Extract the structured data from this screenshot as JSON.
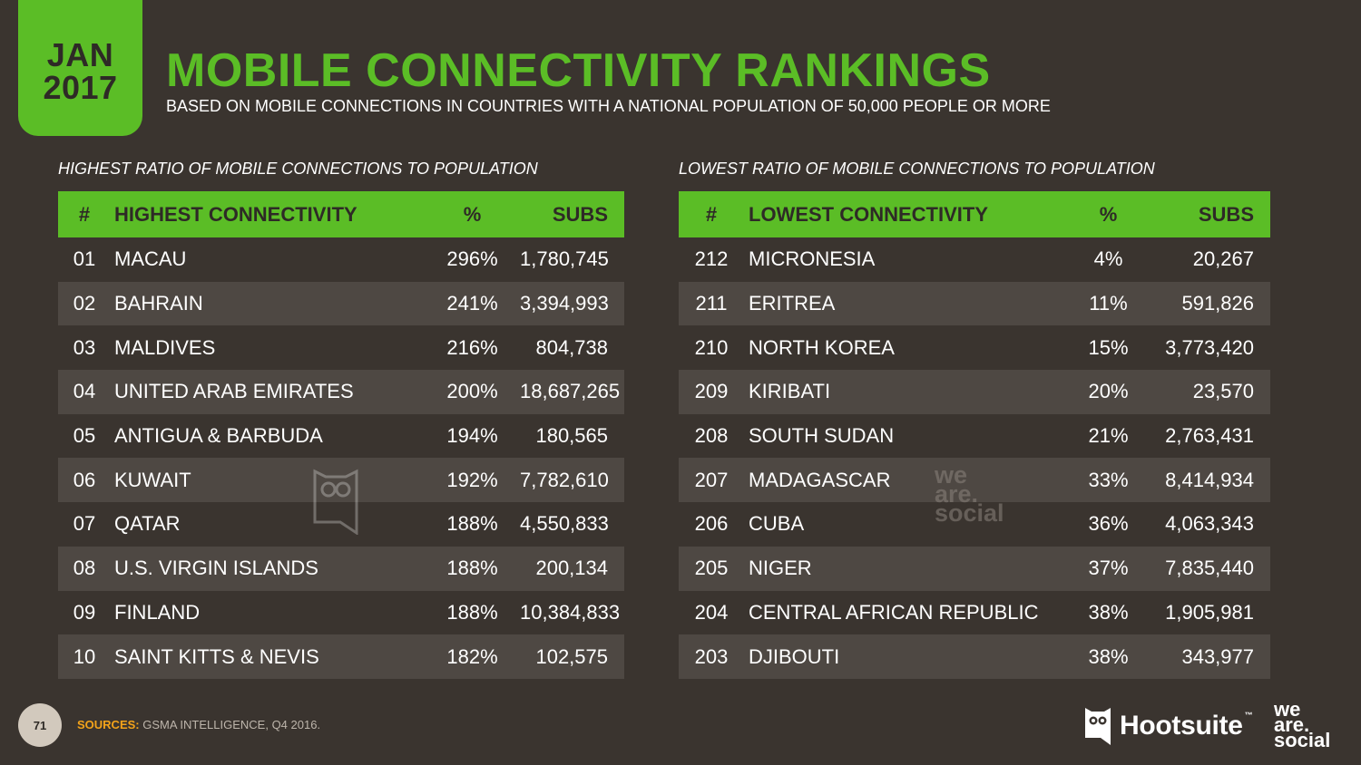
{
  "header": {
    "month": "JAN",
    "year": "2017",
    "title": "MOBILE CONNECTIVITY RANKINGS",
    "subtitle": "BASED ON MOBILE CONNECTIONS IN COUNTRIES WITH A NATIONAL POPULATION OF 50,000 PEOPLE OR MORE"
  },
  "highest": {
    "caption": "HIGHEST RATIO OF MOBILE CONNECTIONS TO POPULATION",
    "headers": {
      "num": "#",
      "name": "HIGHEST CONNECTIVITY",
      "pct": "%",
      "subs": "SUBS"
    },
    "rows": [
      {
        "num": "01",
        "name": "MACAU",
        "pct": "296%",
        "subs": "1,780,745"
      },
      {
        "num": "02",
        "name": "BAHRAIN",
        "pct": "241%",
        "subs": "3,394,993"
      },
      {
        "num": "03",
        "name": "MALDIVES",
        "pct": "216%",
        "subs": "804,738"
      },
      {
        "num": "04",
        "name": "UNITED ARAB EMIRATES",
        "pct": "200%",
        "subs": "18,687,265"
      },
      {
        "num": "05",
        "name": "ANTIGUA & BARBUDA",
        "pct": "194%",
        "subs": "180,565"
      },
      {
        "num": "06",
        "name": "KUWAIT",
        "pct": "192%",
        "subs": "7,782,610"
      },
      {
        "num": "07",
        "name": "QATAR",
        "pct": "188%",
        "subs": "4,550,833"
      },
      {
        "num": "08",
        "name": "U.S. VIRGIN ISLANDS",
        "pct": "188%",
        "subs": "200,134"
      },
      {
        "num": "09",
        "name": "FINLAND",
        "pct": "188%",
        "subs": "10,384,833"
      },
      {
        "num": "10",
        "name": "SAINT KITTS & NEVIS",
        "pct": "182%",
        "subs": "102,575"
      }
    ]
  },
  "lowest": {
    "caption": "LOWEST RATIO OF MOBILE CONNECTIONS TO POPULATION",
    "headers": {
      "num": "#",
      "name": "LOWEST CONNECTIVITY",
      "pct": "%",
      "subs": "SUBS"
    },
    "rows": [
      {
        "num": "212",
        "name": "MICRONESIA",
        "pct": "4%",
        "subs": "20,267"
      },
      {
        "num": "211",
        "name": "ERITREA",
        "pct": "11%",
        "subs": "591,826"
      },
      {
        "num": "210",
        "name": "NORTH KOREA",
        "pct": "15%",
        "subs": "3,773,420"
      },
      {
        "num": "209",
        "name": "KIRIBATI",
        "pct": "20%",
        "subs": "23,570"
      },
      {
        "num": "208",
        "name": "SOUTH SUDAN",
        "pct": "21%",
        "subs": "2,763,431"
      },
      {
        "num": "207",
        "name": "MADAGASCAR",
        "pct": "33%",
        "subs": "8,414,934"
      },
      {
        "num": "206",
        "name": "CUBA",
        "pct": "36%",
        "subs": "4,063,343"
      },
      {
        "num": "205",
        "name": "NIGER",
        "pct": "37%",
        "subs": "7,835,440"
      },
      {
        "num": "204",
        "name": "CENTRAL AFRICAN REPUBLIC",
        "pct": "38%",
        "subs": "1,905,981"
      },
      {
        "num": "203",
        "name": "DJIBOUTI",
        "pct": "38%",
        "subs": "343,977"
      }
    ]
  },
  "footer": {
    "page_number": "71",
    "sources_label": "SOURCES:",
    "sources_text": "GSMA INTELLIGENCE, Q4 2016.",
    "hootsuite": "Hootsuite",
    "hootsuite_tm": "™",
    "we_are_social": [
      "we",
      "are.",
      "social"
    ]
  },
  "watermark": {
    "we_are_social": [
      "we",
      "are.",
      "social"
    ]
  },
  "colors": {
    "background": "#3a342f",
    "accent": "#5bbd26",
    "row_alt": "#4e4843",
    "sources_label": "#f3a31a"
  },
  "icons": [
    "hootsuite-owl-icon"
  ]
}
